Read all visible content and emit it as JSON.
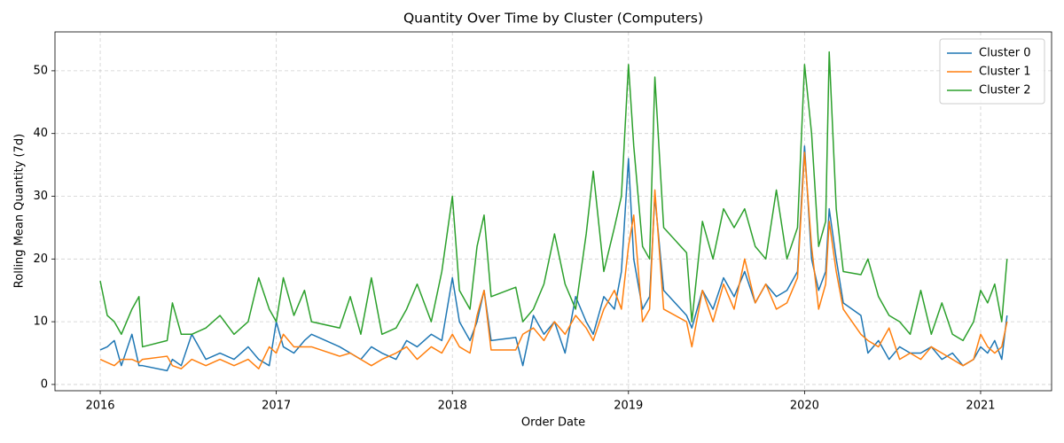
{
  "chart_data": {
    "type": "line",
    "title": "Quantity Over Time by Cluster (Computers)",
    "x_label": "Order Date",
    "y_label": "Rolling Mean Quantity (7d)",
    "x": [
      2016.0,
      2016.04,
      2016.08,
      2016.12,
      2016.18,
      2016.22,
      2016.24,
      2016.38,
      2016.41,
      2016.46,
      2016.52,
      2016.6,
      2016.68,
      2016.76,
      2016.84,
      2016.9,
      2016.96,
      2017.0,
      2017.04,
      2017.1,
      2017.16,
      2017.2,
      2017.36,
      2017.42,
      2017.48,
      2017.54,
      2017.6,
      2017.68,
      2017.74,
      2017.8,
      2017.88,
      2017.94,
      2018.0,
      2018.04,
      2018.1,
      2018.14,
      2018.18,
      2018.22,
      2018.36,
      2018.4,
      2018.46,
      2018.52,
      2018.58,
      2018.64,
      2018.7,
      2018.76,
      2018.8,
      2018.86,
      2018.92,
      2018.96,
      2019.0,
      2019.03,
      2019.08,
      2019.12,
      2019.15,
      2019.2,
      2019.33,
      2019.36,
      2019.42,
      2019.48,
      2019.54,
      2019.6,
      2019.66,
      2019.72,
      2019.78,
      2019.84,
      2019.9,
      2019.96,
      2020.0,
      2020.04,
      2020.08,
      2020.12,
      2020.14,
      2020.18,
      2020.22,
      2020.32,
      2020.36,
      2020.42,
      2020.48,
      2020.54,
      2020.6,
      2020.66,
      2020.72,
      2020.78,
      2020.84,
      2020.9,
      2020.96,
      2021.0,
      2021.04,
      2021.08,
      2021.12,
      2021.15
    ],
    "series": [
      {
        "name": "Cluster 0",
        "color": "#1f77b4",
        "values": [
          5.5,
          6,
          7,
          3,
          8,
          3,
          3,
          2.2,
          4,
          3,
          8,
          4,
          5,
          4,
          6,
          4,
          3,
          10,
          6,
          5,
          7,
          8,
          6,
          5,
          4,
          6,
          5,
          4,
          7,
          6,
          8,
          7,
          17,
          10,
          7,
          10,
          15,
          7,
          7.5,
          3,
          11,
          8,
          10,
          5,
          14,
          10,
          8,
          14,
          12,
          18,
          36,
          20,
          12,
          14,
          30,
          15,
          11,
          9,
          15,
          12,
          17,
          14,
          18,
          13,
          16,
          14,
          15,
          18,
          38,
          20,
          15,
          18,
          28,
          20,
          13,
          11,
          5,
          7,
          4,
          6,
          5,
          5,
          6,
          4,
          5,
          3,
          4,
          6,
          5,
          7,
          4,
          11
        ]
      },
      {
        "name": "Cluster 1",
        "color": "#ff7f0e",
        "values": [
          4,
          3.5,
          3,
          4,
          4,
          3.5,
          4,
          4.5,
          3,
          2.5,
          4,
          3,
          4,
          3,
          4,
          2.5,
          6,
          5,
          8,
          6,
          6,
          6,
          4.5,
          5,
          4,
          3,
          4,
          5,
          6,
          4,
          6,
          5,
          8,
          6,
          5,
          11,
          15,
          5.5,
          5.5,
          8,
          9,
          7,
          10,
          8,
          11,
          9,
          7,
          12,
          15,
          12,
          22,
          27,
          10,
          12,
          31,
          12,
          10,
          6,
          15,
          10,
          16,
          12,
          20,
          13,
          16,
          12,
          13,
          17,
          37,
          22,
          12,
          16,
          26,
          18,
          12,
          8,
          7,
          6,
          9,
          4,
          5,
          4,
          6,
          5,
          4,
          3,
          4,
          8,
          6,
          5,
          6,
          10
        ]
      },
      {
        "name": "Cluster 2",
        "color": "#2ca02c",
        "values": [
          16.5,
          11,
          10,
          8,
          12,
          14,
          6,
          7,
          13,
          8,
          8,
          9,
          11,
          8,
          10,
          17,
          12,
          10,
          17,
          11,
          15,
          10,
          9,
          14,
          8,
          17,
          8,
          9,
          12,
          16,
          10,
          18,
          30,
          15,
          12,
          22,
          27,
          14,
          15.5,
          10,
          12,
          16,
          24,
          16,
          12,
          24,
          34,
          18,
          25,
          30,
          51,
          38,
          22,
          20,
          49,
          25,
          21,
          10,
          26,
          20,
          28,
          25,
          28,
          22,
          20,
          31,
          20,
          25,
          51,
          40,
          22,
          26,
          53,
          28,
          18,
          17.5,
          20,
          14,
          11,
          10,
          8,
          15,
          8,
          13,
          8,
          7,
          10,
          15,
          13,
          16,
          10,
          20
        ]
      }
    ],
    "xlim": [
      2015.743,
      2021.403
    ],
    "xticks": [
      2016,
      2017,
      2018,
      2019,
      2020,
      2021
    ],
    "ylim": [
      -1,
      56.2
    ],
    "yticks": [
      0,
      10,
      20,
      30,
      40,
      50
    ],
    "grid": true,
    "legend": "upper right"
  }
}
